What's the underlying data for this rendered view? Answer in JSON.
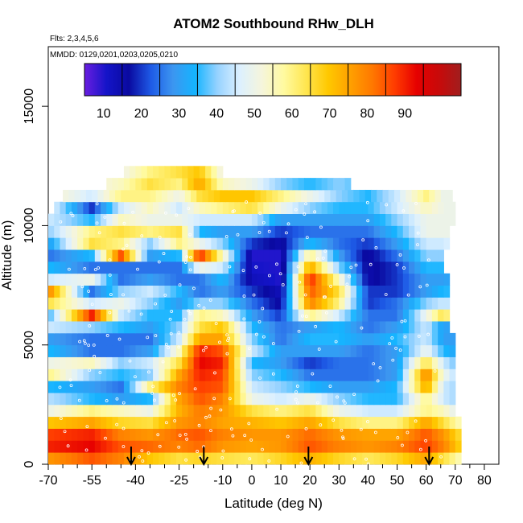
{
  "chart_data": {
    "type": "heatmap",
    "title": "ATOM2 Southbound RHw_DLH",
    "annotations": {
      "flights": "Flts: 2,3,4,5,6",
      "dates": "MMDD: 0129,0201,0203,0205,0210"
    },
    "xlabel": "Latitude (deg N)",
    "ylabel": "Altitude (m)",
    "xlim": [
      -70,
      85
    ],
    "ylim": [
      0,
      17500
    ],
    "x_ticks": [
      -70,
      -55,
      -40,
      -25,
      -10,
      0,
      10,
      20,
      30,
      40,
      50,
      60,
      70,
      80
    ],
    "x_tick_labels": [
      "-70",
      "-55",
      "-40",
      "-25",
      "-10",
      "0",
      "10",
      "20",
      "30",
      "40",
      "50",
      "60",
      "70",
      "80"
    ],
    "x_minor_ticks": [
      -65,
      -60,
      -50,
      -45,
      -35,
      -30,
      -20,
      -15,
      -5,
      5,
      15,
      25,
      35,
      45,
      55,
      65,
      75
    ],
    "y_ticks": [
      0,
      5000,
      10000,
      15000
    ],
    "y_tick_labels": [
      "0",
      "5000",
      "10000",
      "15000"
    ],
    "colorbar": {
      "range": [
        0,
        100
      ],
      "ticks": [
        10,
        20,
        30,
        40,
        50,
        60,
        70,
        80,
        90
      ],
      "tick_labels": [
        "10",
        "20",
        "30",
        "40",
        "50",
        "60",
        "70",
        "80",
        "90"
      ],
      "colors": [
        "#6a1ee0",
        "#1414c8",
        "#0a0aa0",
        "#1e5ae6",
        "#3c96f0",
        "#14b4ff",
        "#96d2ff",
        "#dcf0ff",
        "#f5f5dc",
        "#fffaa0",
        "#ffe650",
        "#ffc800",
        "#ffa000",
        "#ff7800",
        "#ff3c00",
        "#e60000",
        "#c80a0a",
        "#a01e1e"
      ]
    },
    "arrows_latitude": [
      -41.5,
      -16.5,
      19.5,
      61
    ],
    "altitude_bins_m": [
      0,
      500,
      1000,
      1500,
      2000,
      2500,
      3000,
      3500,
      4000,
      4500,
      5000,
      5500,
      6000,
      6500,
      7000,
      7500,
      8000,
      8500,
      9000,
      9500,
      10000,
      10500,
      11000,
      11500,
      12000,
      12500
    ],
    "latitude_range_by_bin": [
      [
        -70,
        72
      ],
      [
        -70,
        72
      ],
      [
        -70,
        71
      ],
      [
        -70,
        71
      ],
      [
        -70,
        70
      ],
      [
        -70,
        70
      ],
      [
        -70,
        70
      ],
      [
        -70,
        70
      ],
      [
        -70,
        69
      ],
      [
        -70,
        69
      ],
      [
        -70,
        69
      ],
      [
        -70,
        68
      ],
      [
        -70,
        68
      ],
      [
        -70,
        67
      ],
      [
        -70,
        67
      ],
      [
        -70,
        67
      ],
      [
        -70,
        66
      ],
      [
        -70,
        66
      ],
      [
        -70,
        67
      ],
      [
        -70,
        68
      ],
      [
        -70,
        70
      ],
      [
        -68,
        70
      ],
      [
        -65,
        68
      ],
      [
        -50,
        34
      ],
      [
        -44,
        -10
      ]
    ],
    "rh_profile": [
      {
        "lat": -70,
        "values": [
          72,
          85,
          82,
          65,
          45,
          38,
          30,
          55,
          45,
          30,
          25,
          40,
          30,
          60,
          75,
          40,
          30,
          20,
          25,
          35,
          40,
          45,
          50,
          45,
          40
        ]
      },
      {
        "lat": -55,
        "values": [
          80,
          88,
          85,
          70,
          55,
          30,
          25,
          35,
          50,
          20,
          20,
          35,
          85,
          40,
          20,
          45,
          20,
          30,
          60,
          55,
          30,
          15,
          40,
          45,
          40
        ]
      },
      {
        "lat": -45,
        "values": [
          75,
          80,
          75,
          62,
          50,
          25,
          20,
          30,
          35,
          20,
          20,
          30,
          40,
          45,
          35,
          20,
          20,
          80,
          55,
          60,
          50,
          40,
          55,
          50,
          45
        ]
      },
      {
        "lat": -35,
        "values": [
          65,
          78,
          72,
          60,
          45,
          30,
          55,
          35,
          40,
          25,
          20,
          25,
          30,
          35,
          40,
          25,
          20,
          25,
          35,
          55,
          45,
          50,
          55,
          60,
          55
        ]
      },
      {
        "lat": -25,
        "values": [
          60,
          75,
          78,
          72,
          68,
          70,
          75,
          70,
          60,
          50,
          40,
          35,
          30,
          25,
          30,
          20,
          20,
          30,
          55,
          60,
          45,
          40,
          45,
          55,
          60
        ]
      },
      {
        "lat": -18,
        "values": [
          62,
          78,
          80,
          75,
          76,
          80,
          82,
          85,
          88,
          85,
          70,
          60,
          55,
          35,
          20,
          20,
          45,
          85,
          45,
          30,
          40,
          50,
          60,
          70,
          65
        ]
      },
      {
        "lat": -10,
        "values": [
          60,
          72,
          75,
          70,
          72,
          75,
          80,
          82,
          85,
          80,
          70,
          65,
          50,
          35,
          25,
          30,
          40,
          50,
          35,
          25,
          40,
          55,
          65,
          50,
          45
        ]
      },
      {
        "lat": 0,
        "values": [
          58,
          70,
          72,
          68,
          60,
          45,
          40,
          35,
          30,
          40,
          35,
          30,
          25,
          20,
          15,
          8,
          6,
          5,
          15,
          25,
          40,
          60,
          65,
          45
        ]
      },
      {
        "lat": 10,
        "values": [
          62,
          72,
          72,
          65,
          55,
          40,
          35,
          30,
          25,
          25,
          20,
          20,
          15,
          10,
          8,
          5,
          5,
          5,
          10,
          15,
          25,
          45,
          55,
          35
        ]
      },
      {
        "lat": 20,
        "values": [
          68,
          80,
          78,
          70,
          60,
          45,
          30,
          20,
          15,
          25,
          30,
          25,
          55,
          75,
          80,
          85,
          70,
          55,
          30,
          20,
          25,
          35,
          45,
          30
        ]
      },
      {
        "lat": 30,
        "values": [
          62,
          75,
          72,
          60,
          45,
          35,
          25,
          20,
          20,
          25,
          30,
          30,
          40,
          55,
          60,
          50,
          35,
          25,
          20,
          20,
          25,
          30,
          35
        ]
      },
      {
        "lat": 40,
        "values": [
          58,
          72,
          70,
          55,
          40,
          30,
          25,
          20,
          20,
          20,
          25,
          20,
          20,
          15,
          15,
          10,
          10,
          10,
          15,
          20,
          25,
          30,
          30
        ]
      },
      {
        "lat": 50,
        "values": [
          62,
          75,
          70,
          55,
          40,
          30,
          30,
          25,
          25,
          25,
          30,
          25,
          20,
          20,
          15,
          15,
          15,
          20,
          25,
          30,
          35,
          40,
          40
        ]
      },
      {
        "lat": 60,
        "values": [
          70,
          82,
          80,
          70,
          55,
          55,
          70,
          75,
          60,
          45,
          40,
          40,
          45,
          35,
          25,
          25,
          30,
          35,
          40,
          45,
          45,
          50,
          55
        ]
      },
      {
        "lat": 66,
        "values": [
          60,
          75,
          72,
          60,
          50,
          40,
          40,
          45,
          40,
          30,
          25,
          25,
          60,
          40,
          30,
          25,
          30,
          35,
          40,
          45,
          45,
          45
        ]
      },
      {
        "lat": 72,
        "values": [
          50,
          62,
          60,
          50,
          40,
          35,
          35,
          35,
          30,
          25,
          25,
          30,
          35,
          35,
          30,
          30,
          35,
          40,
          45
        ]
      }
    ]
  }
}
